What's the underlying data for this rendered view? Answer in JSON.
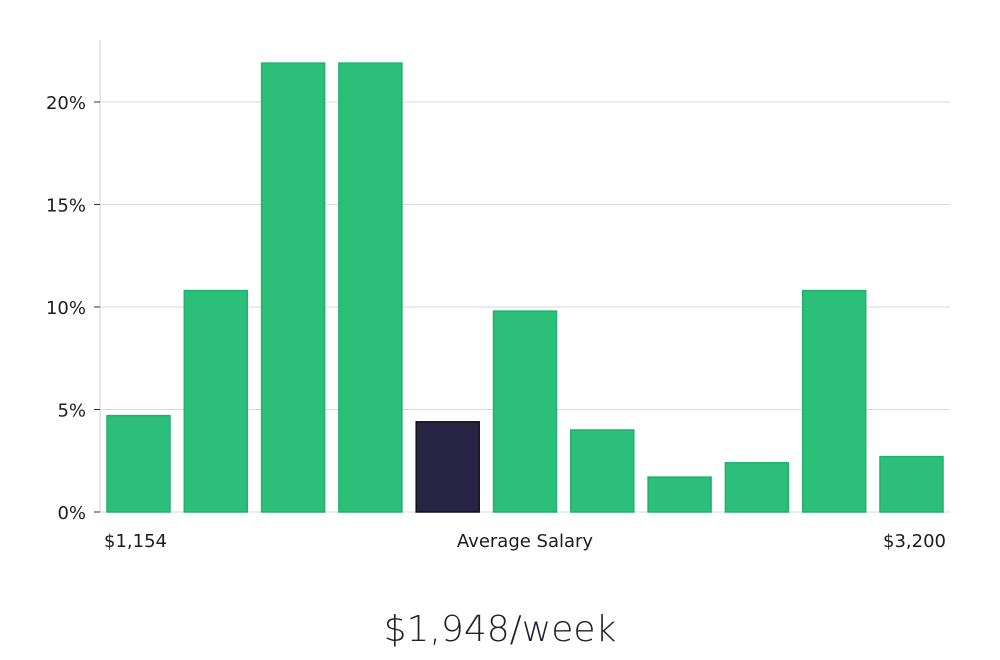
{
  "chart_data": {
    "type": "bar",
    "x_labels": {
      "left": "$1,154",
      "center": "Average Salary",
      "right": "$3,200"
    },
    "y_ticks": [
      "0%",
      "5%",
      "10%",
      "15%",
      "20%"
    ],
    "y_tick_values": [
      0,
      5,
      10,
      15,
      20
    ],
    "ylim": [
      0,
      23
    ],
    "values": [
      4.7,
      10.8,
      21.9,
      21.9,
      4.4,
      9.8,
      4.0,
      1.7,
      2.4,
      10.8,
      2.7
    ],
    "highlight_index": 4,
    "colors": {
      "bar": "#2bbf79",
      "bar_stroke": "#22b06c",
      "highlight": "#272543",
      "highlight_stroke": "#11111d",
      "grid": "#d9d9d9",
      "axis": "#d0d0d0"
    },
    "grid": true,
    "legend": "none"
  },
  "summary": {
    "salary": "$1,948/week"
  }
}
